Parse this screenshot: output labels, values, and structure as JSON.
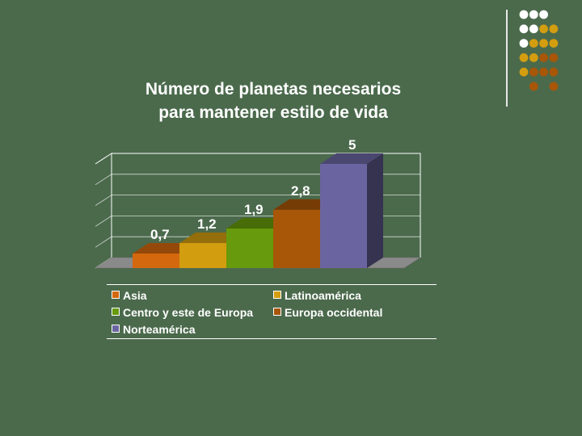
{
  "colors": {
    "background": "#4b6a4c",
    "asia": "#d4680e",
    "latinoamerica": "#d39d10",
    "centro": "#679a0c",
    "europa": "#a85608",
    "norteamerica": "#6a65a0"
  },
  "chart_data": {
    "type": "bar",
    "title": "Número de planetas necesarios para mantener estilo de vida",
    "title_lines": [
      "Número de planetas necesarios",
      "para mantener estilo de vida"
    ],
    "categories": [
      "Asia",
      "Latinoamérica",
      "Centro y este de Europa",
      "Europa occidental",
      "Norteamérica"
    ],
    "values": [
      0.7,
      1.2,
      1.9,
      2.8,
      5
    ],
    "data_labels": [
      "0,7",
      "1,2",
      "1,9",
      "2,8",
      "5"
    ],
    "series_colors": [
      "#d4680e",
      "#d39d10",
      "#679a0c",
      "#a85608",
      "#6a65a0"
    ],
    "ylim": [
      0,
      5
    ],
    "three_d": true,
    "grid": true,
    "legend_position": "bottom",
    "legend": [
      "Asia",
      "Latinoamérica",
      "Centro y este de Europa",
      "Europa occidental",
      "Norteamérica"
    ]
  },
  "decoration": {
    "dot_grid_colors": [
      [
        "#ffffff",
        "#ffffff",
        "#ffffff",
        null
      ],
      [
        "#ffffff",
        "#ffffff",
        "#d39d10",
        "#d39d10"
      ],
      [
        "#ffffff",
        "#d39d10",
        "#d39d10",
        "#d39d10"
      ],
      [
        "#d39d10",
        "#d39d10",
        "#a85608",
        "#a85608"
      ],
      [
        "#d39d10",
        "#a85608",
        "#a85608",
        "#a85608"
      ],
      [
        null,
        "#a85608",
        null,
        "#a85608"
      ]
    ]
  }
}
